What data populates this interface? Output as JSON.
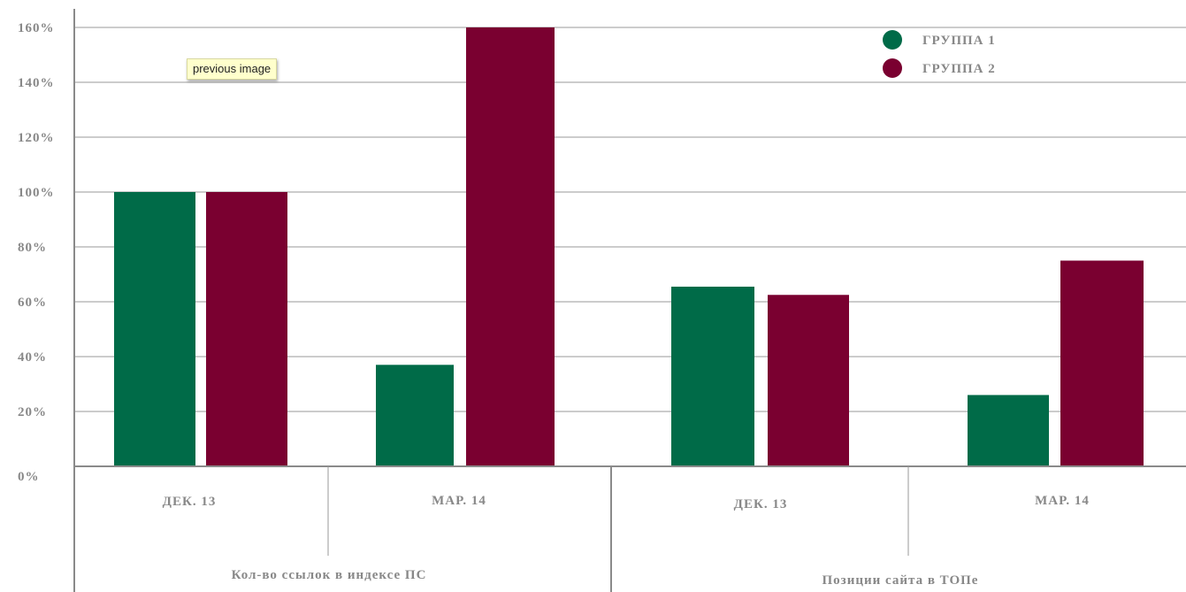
{
  "chart_data": {
    "type": "bar",
    "y_ticks": [
      "0%",
      "20%",
      "40%",
      "60%",
      "80%",
      "100%",
      "120%",
      "140%",
      "160%"
    ],
    "ylim": [
      0,
      160
    ],
    "grid": true,
    "legend_position": "top-right",
    "groups": [
      {
        "label": "Кол-во ссылок в индексе ПС",
        "categories": [
          "ДЕК. 13",
          "МАР. 14"
        ]
      },
      {
        "label": "Позиции сайта в ТОПе",
        "categories": [
          "ДЕК. 13",
          "МАР. 14"
        ]
      }
    ],
    "series": [
      {
        "name": "ГРУППА 1",
        "color": "#006b48",
        "values": [
          100,
          37,
          65.5,
          26
        ]
      },
      {
        "name": "ГРУППА 2",
        "color": "#7a0030",
        "values": [
          100,
          160,
          62.5,
          75
        ]
      }
    ]
  },
  "tooltip": {
    "text": "previous image"
  }
}
